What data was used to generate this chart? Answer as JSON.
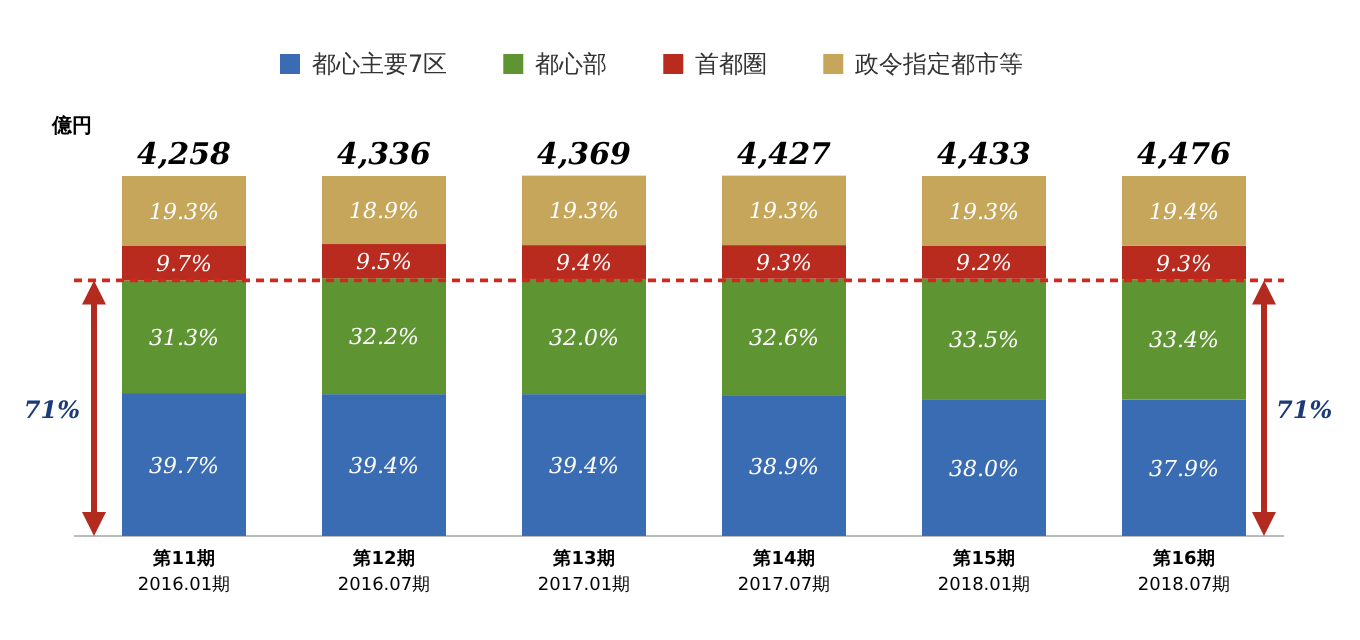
{
  "chart_data": {
    "type": "bar",
    "stacked": true,
    "ylabel": "億円",
    "legend": "top",
    "categories": [
      "第11期\n2016.01期",
      "第12期\n2016.07期",
      "第13期\n2017.01期",
      "第14期\n2017.07期",
      "第15期\n2018.01期",
      "第16期\n2018.07期"
    ],
    "series": [
      {
        "name": "都心主要7区",
        "color": "#3a6cb4",
        "values": [
          39.7,
          39.4,
          39.4,
          38.9,
          38.0,
          37.9
        ],
        "value_labels": [
          "39.7%",
          "39.4%",
          "39.4%",
          "38.9%",
          "38.0%",
          "37.9%"
        ]
      },
      {
        "name": "都心部",
        "color": "#5f9433",
        "values": [
          31.3,
          32.2,
          32.0,
          32.6,
          33.5,
          33.4
        ],
        "value_labels": [
          "31.3%",
          "32.2%",
          "32.0%",
          "32.6%",
          "33.5%",
          "33.4%"
        ]
      },
      {
        "name": "首都圏",
        "color": "#b92a1f",
        "values": [
          9.7,
          9.5,
          9.4,
          9.3,
          9.2,
          9.3
        ],
        "value_labels": [
          "9.7%",
          "9.5%",
          "9.4%",
          "9.3%",
          "9.2%",
          "9.3%"
        ]
      },
      {
        "name": "政令指定都市等",
        "color": "#c6a65a",
        "values": [
          19.3,
          18.9,
          19.3,
          19.3,
          19.3,
          19.4
        ],
        "value_labels": [
          "19.3%",
          "18.9%",
          "19.3%",
          "19.3%",
          "19.3%",
          "19.4%"
        ]
      }
    ],
    "ylim": [
      0,
      100
    ],
    "tick_labels": "x",
    "ref_lines": [
      {
        "axis": "y",
        "value": 71,
        "color": "#d0281e",
        "line_style": "dashed"
      }
    ],
    "annotations": [
      "71%",
      "71%",
      {
        "text": "4,258",
        "x": "第11期\n2016.01期",
        "y": 100
      },
      {
        "text": "4,336",
        "x": "第12期\n2016.07期",
        "y": 100
      },
      {
        "text": "4,369",
        "x": "第13期\n2017.01期",
        "y": 100
      },
      {
        "text": "4,427",
        "x": "第14期\n2017.07期",
        "y": 100
      },
      {
        "text": "4,433",
        "x": "第15期\n2018.01期",
        "y": 100
      },
      {
        "text": "4,476",
        "x": "第16期\n2018.07期",
        "y": 100
      }
    ]
  }
}
